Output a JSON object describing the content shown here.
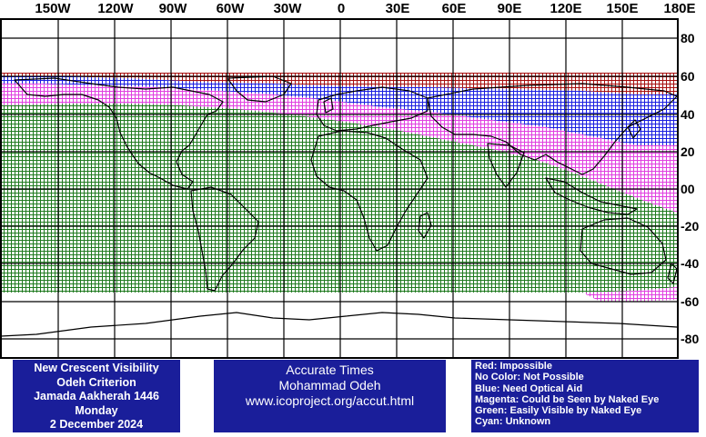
{
  "map": {
    "lon_labels": [
      "150W",
      "120W",
      "90W",
      "60W",
      "30W",
      "0",
      "30E",
      "60E",
      "90E",
      "120E",
      "150E",
      "180E"
    ],
    "lat_labels": [
      "80",
      "60",
      "40",
      "20",
      "00",
      "-20",
      "-40",
      "-60",
      "-80"
    ],
    "legend_colors": {
      "impossible": "#a61010",
      "naked_eye_maybe": "#e040e0",
      "optical_aid": "#1a1ee0",
      "easily_visible": "#1f7a1f",
      "coastline": "#000000"
    },
    "visibility_zones": [
      {
        "zone": "impossible",
        "lat_from": 62,
        "lat_to": 57
      },
      {
        "zone": "optical_aid",
        "lat_from": 57,
        "lat_to": 52
      },
      {
        "zone": "naked_eye_maybe",
        "lat_from": 52,
        "lat_to": 46
      },
      {
        "zone": "easily_visible",
        "lat_from": 46,
        "lat_to": -55
      }
    ]
  },
  "info_left": {
    "line1": "New Crescent Visibility",
    "line2": "Odeh Criterion",
    "line3": "Jamada Aakherah 1446",
    "line4": "Monday",
    "line5": "2 December 2024"
  },
  "info_mid": {
    "line1": "Accurate Times",
    "line2": "Mohammad Odeh",
    "line3": "www.icoproject.org/accut.html"
  },
  "info_right": {
    "line1": "Red: Impossible",
    "line2": "No Color: Not Possible",
    "line3": "Blue: Need Optical Aid",
    "line4": "Magenta: Could be Seen by Naked Eye",
    "line5": "Green: Easily Visible by Naked Eye",
    "line6": "Cyan: Unknown"
  }
}
